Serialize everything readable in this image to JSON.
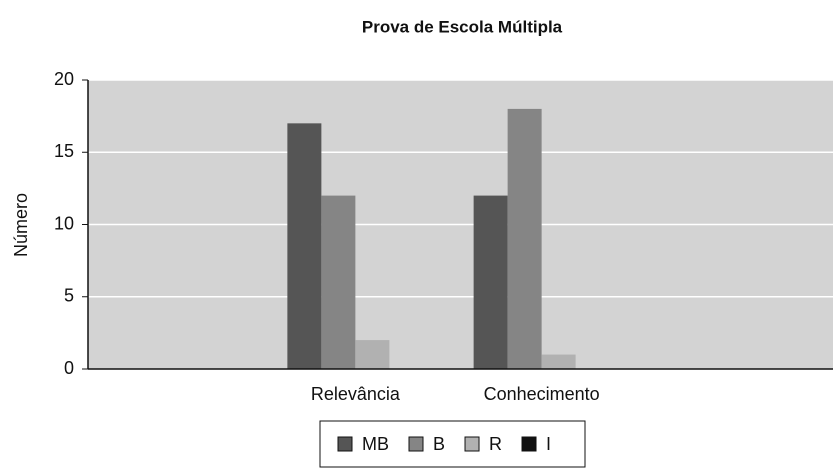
{
  "chart_data": {
    "type": "bar",
    "title": "Prova de Escola Múltipla",
    "y_label": "Número",
    "categories": [
      null,
      "Relevância",
      "Conhecimento",
      null
    ],
    "series": [
      {
        "name": "MB",
        "color": "#555555",
        "values": [
          null,
          17,
          12,
          null
        ]
      },
      {
        "name": "B",
        "color": "#858585",
        "values": [
          null,
          12,
          18,
          null
        ]
      },
      {
        "name": "R",
        "color": "#b1b1b1",
        "values": [
          null,
          2,
          1,
          null
        ]
      },
      {
        "name": "I",
        "color": "#111111",
        "values": [
          null,
          0,
          0,
          null
        ]
      }
    ],
    "ylim": [
      0,
      20
    ],
    "yticks": [
      0,
      5,
      10,
      15,
      20
    ],
    "grid": true,
    "legend": "bottom"
  }
}
